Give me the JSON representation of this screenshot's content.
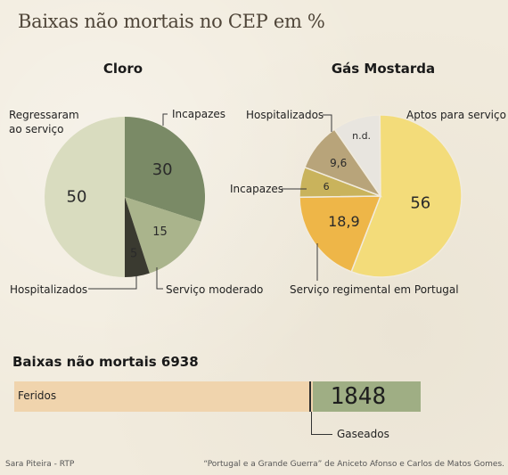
{
  "title": "Baixas não mortais no CEP em %",
  "colors": {
    "background": "#f1ebdd",
    "olive_dark": "#7a8a66",
    "olive_light": "#aab48c",
    "sage_pale": "#d9dcbf",
    "near_black": "#3a3a30",
    "yellow": "#f3dc7a",
    "orange": "#eeb648",
    "mustard": "#c9b35c",
    "tan": "#b8a47a",
    "nd_grey": "#e8e5df",
    "feridos_bar": "#f0d4ad",
    "gaseados_bar": "#9fae84"
  },
  "chart_data": [
    {
      "type": "pie",
      "title": "Cloro",
      "slices": [
        {
          "label": "Incapazes",
          "value": 30,
          "value_label": "30",
          "color": "#7a8a66"
        },
        {
          "label": "Serviço moderado",
          "value": 15,
          "value_label": "15",
          "color": "#aab48c"
        },
        {
          "label": "Hospitalizados",
          "value": 5,
          "value_label": "5",
          "color": "#3a3a30"
        },
        {
          "label": "Regressaram ao serviço",
          "value": 50,
          "value_label": "50",
          "color": "#d9dcbf"
        }
      ]
    },
    {
      "type": "pie",
      "title": "Gás Mostarda",
      "slices": [
        {
          "label": "Aptos para serviço",
          "value": 9.5,
          "value_label": "n.d.",
          "color": "#e8e5df"
        },
        {
          "label": "Serviço regimental em Portugal",
          "value": 56,
          "value_label": "56",
          "color": "#f3dc7a"
        },
        {
          "label": "",
          "value": 18.9,
          "value_label": "18,9",
          "color": "#eeb648"
        },
        {
          "label": "Incapazes",
          "value": 6,
          "value_label": "6",
          "color": "#c9b35c"
        },
        {
          "label": "Hospitalizados",
          "value": 9.6,
          "value_label": "9,6",
          "color": "#b8a47a"
        }
      ]
    },
    {
      "type": "bar",
      "title": "Baixas não mortais 6938",
      "categories": [
        "Feridos",
        "Gaseados"
      ],
      "values": [
        5090,
        1848
      ],
      "value_labels": [
        "",
        "1848"
      ]
    }
  ],
  "footer": {
    "left": "Sara Piteira - RTP",
    "right": "“Portugal e a Grande Guerra” de Aniceto Afonso e Carlos de Matos Gomes."
  }
}
